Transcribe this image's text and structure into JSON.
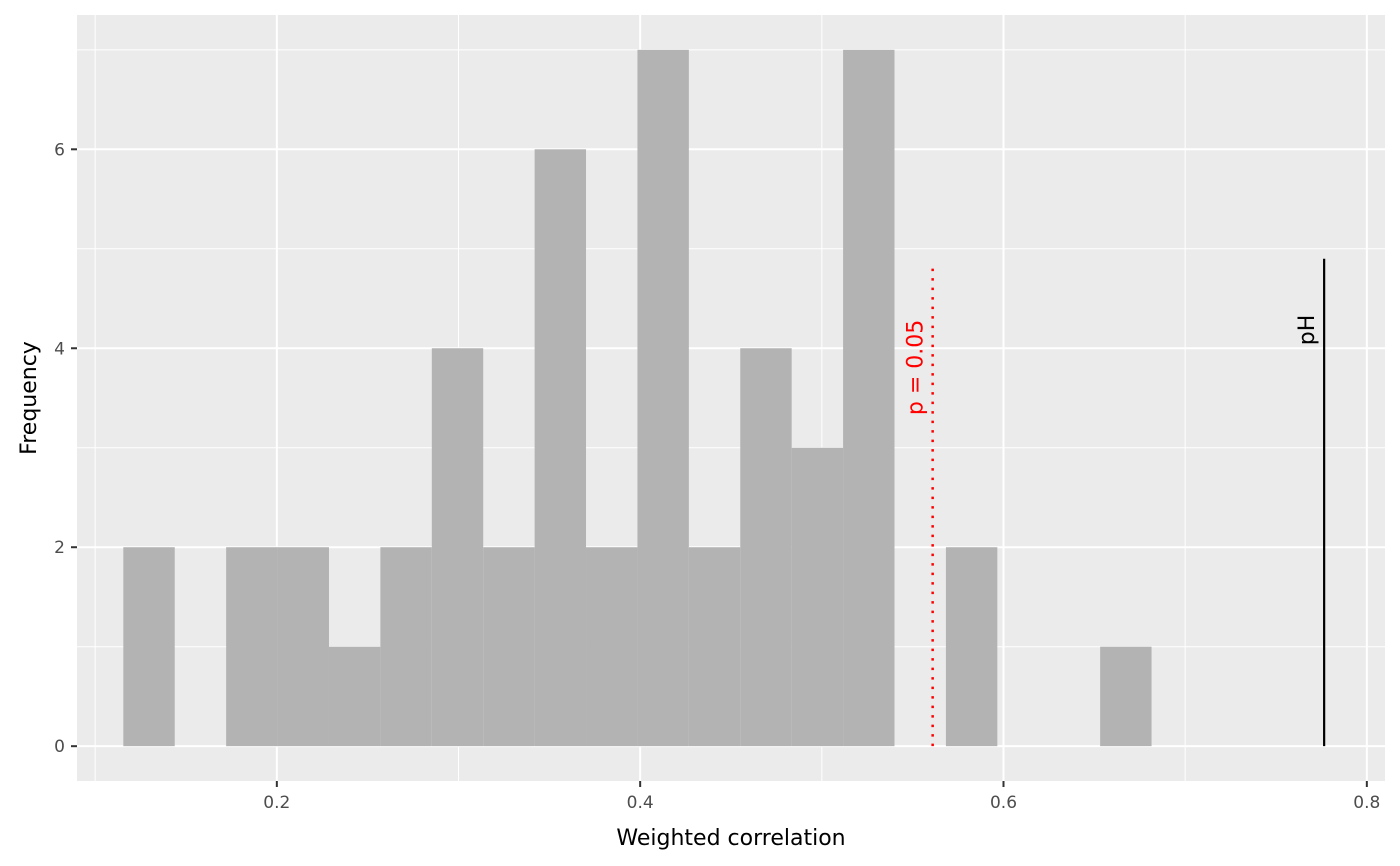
{
  "chart_data": {
    "type": "bar",
    "xlabel": "Weighted correlation",
    "ylabel": "Frequency",
    "xlim": [
      0.09,
      0.81
    ],
    "ylim": [
      -0.35,
      7.35
    ],
    "x_ticks": [
      0.2,
      0.4,
      0.6,
      0.8
    ],
    "x_tick_labels": [
      "0.2",
      "0.4",
      "0.6",
      "0.8"
    ],
    "y_ticks": [
      0,
      2,
      4,
      6
    ],
    "y_tick_labels": [
      "0",
      "2",
      "4",
      "6"
    ],
    "grid": true,
    "bar_color": "#b3b3b3",
    "panel_color": "#ebebeb",
    "bins": [
      {
        "x0": 0.1155,
        "x1": 0.1438,
        "count": 2
      },
      {
        "x0": 0.1438,
        "x1": 0.1721,
        "count": 0
      },
      {
        "x0": 0.1721,
        "x1": 0.2004,
        "count": 2
      },
      {
        "x0": 0.2004,
        "x1": 0.2287,
        "count": 2
      },
      {
        "x0": 0.2287,
        "x1": 0.257,
        "count": 1
      },
      {
        "x0": 0.257,
        "x1": 0.2853,
        "count": 2
      },
      {
        "x0": 0.2853,
        "x1": 0.3136,
        "count": 4
      },
      {
        "x0": 0.3136,
        "x1": 0.3419,
        "count": 2
      },
      {
        "x0": 0.3419,
        "x1": 0.3702,
        "count": 6
      },
      {
        "x0": 0.3702,
        "x1": 0.3985,
        "count": 2
      },
      {
        "x0": 0.3985,
        "x1": 0.4268,
        "count": 7
      },
      {
        "x0": 0.4268,
        "x1": 0.4551,
        "count": 2
      },
      {
        "x0": 0.4551,
        "x1": 0.4834,
        "count": 4
      },
      {
        "x0": 0.4834,
        "x1": 0.5117,
        "count": 3
      },
      {
        "x0": 0.5117,
        "x1": 0.54,
        "count": 7
      },
      {
        "x0": 0.54,
        "x1": 0.5683,
        "count": 0
      },
      {
        "x0": 0.5683,
        "x1": 0.5966,
        "count": 2
      },
      {
        "x0": 0.5966,
        "x1": 0.6249,
        "count": 0
      },
      {
        "x0": 0.6249,
        "x1": 0.6532,
        "count": 0
      },
      {
        "x0": 0.6532,
        "x1": 0.6815,
        "count": 1
      }
    ],
    "reference_lines": [
      {
        "label": "p = 0.05",
        "x": 0.561,
        "y_top": 4.85,
        "color": "#ff0000",
        "style": "dotted"
      },
      {
        "label": "pH",
        "x": 0.7765,
        "y_top": 4.9,
        "color": "#000000",
        "style": "solid"
      }
    ]
  }
}
